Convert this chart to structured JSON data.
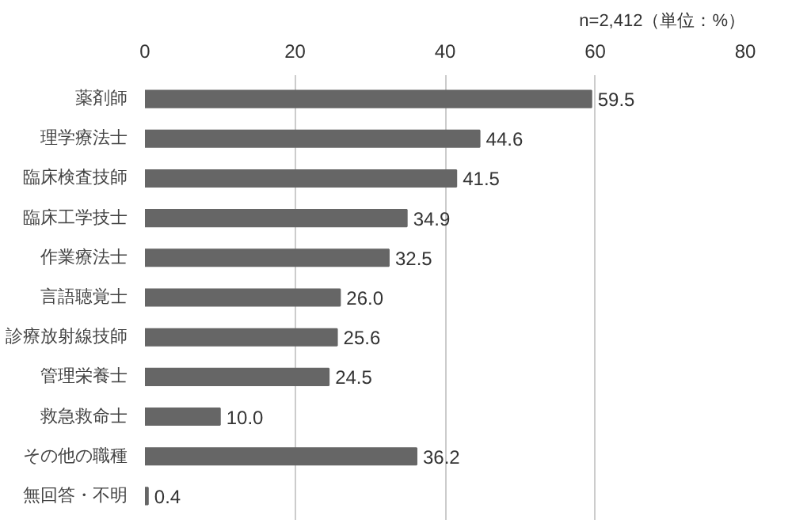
{
  "chart_data": {
    "type": "bar",
    "orientation": "horizontal",
    "categories": [
      "薬剤師",
      "理学療法士",
      "臨床検査技師",
      "臨床工学技士",
      "作業療法士",
      "言語聴覚士",
      "診療放射線技師",
      "管理栄養士",
      "救急救命士",
      "その他の職種",
      "無回答・不明"
    ],
    "values": [
      59.5,
      44.6,
      41.5,
      34.9,
      32.5,
      26.0,
      25.6,
      24.5,
      10.0,
      36.2,
      0.4
    ],
    "value_labels": [
      "59.5",
      "44.6",
      "41.5",
      "34.9",
      "32.5",
      "26.0",
      "25.6",
      "24.5",
      "10.0",
      "36.2",
      "0.4"
    ],
    "color": "#666666",
    "xlim": [
      0,
      80
    ],
    "xticks": [
      0,
      20,
      40,
      60,
      80
    ],
    "grid": "x",
    "annotations": [
      "n=2,412（単位：%）"
    ]
  }
}
